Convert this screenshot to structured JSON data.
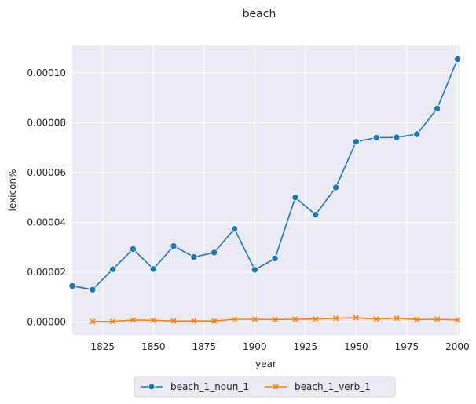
{
  "chart_data": {
    "type": "line",
    "title": "beach",
    "xlabel": "year",
    "ylabel": "lexicon%",
    "xlim": [
      1810,
      2001
    ],
    "ylim": [
      -5.2e-06,
      0.000111
    ],
    "xticks": [
      1825,
      1850,
      1875,
      1900,
      1925,
      1950,
      1975,
      2000
    ],
    "xtick_labels": [
      "1825",
      "1850",
      "1875",
      "1900",
      "1925",
      "1950",
      "1975",
      "2000"
    ],
    "yticks": [
      0,
      2e-05,
      4e-05,
      6e-05,
      8e-05,
      0.0001
    ],
    "ytick_labels": [
      "0.00000",
      "0.00002",
      "0.00004",
      "0.00006",
      "0.00008",
      "0.00010"
    ],
    "grid": true,
    "legend_position": "bottom-center",
    "series": [
      {
        "name": "beach_1_noun_1",
        "color": "#1f77b4",
        "marker": "circle",
        "x": [
          1810,
          1820,
          1830,
          1840,
          1850,
          1860,
          1870,
          1880,
          1890,
          1900,
          1910,
          1920,
          1930,
          1940,
          1950,
          1960,
          1970,
          1980,
          1990,
          2000
        ],
        "y": [
          1.45e-05,
          1.3e-05,
          2.12e-05,
          2.93e-05,
          2.13e-05,
          3.05e-05,
          2.61e-05,
          2.79e-05,
          3.74e-05,
          2.1e-05,
          2.55e-05,
          5e-05,
          4.31e-05,
          5.4e-05,
          7.24e-05,
          7.4e-05,
          7.41e-05,
          7.54e-05,
          8.57e-05,
          0.0001055
        ]
      },
      {
        "name": "beach_1_verb_1",
        "color": "#ff7f0e",
        "marker": "x",
        "x": [
          1820,
          1830,
          1840,
          1850,
          1860,
          1870,
          1880,
          1890,
          1900,
          1910,
          1920,
          1930,
          1940,
          1950,
          1960,
          1970,
          1980,
          1990,
          2000
        ],
        "y": [
          2e-07,
          2e-07,
          8e-07,
          7e-07,
          4e-07,
          4e-07,
          4e-07,
          1.1e-06,
          1.1e-06,
          1e-06,
          1.1e-06,
          1.2e-06,
          1.5e-06,
          1.7e-06,
          1.2e-06,
          1.5e-06,
          1e-06,
          1.1e-06,
          8e-07
        ]
      }
    ]
  }
}
